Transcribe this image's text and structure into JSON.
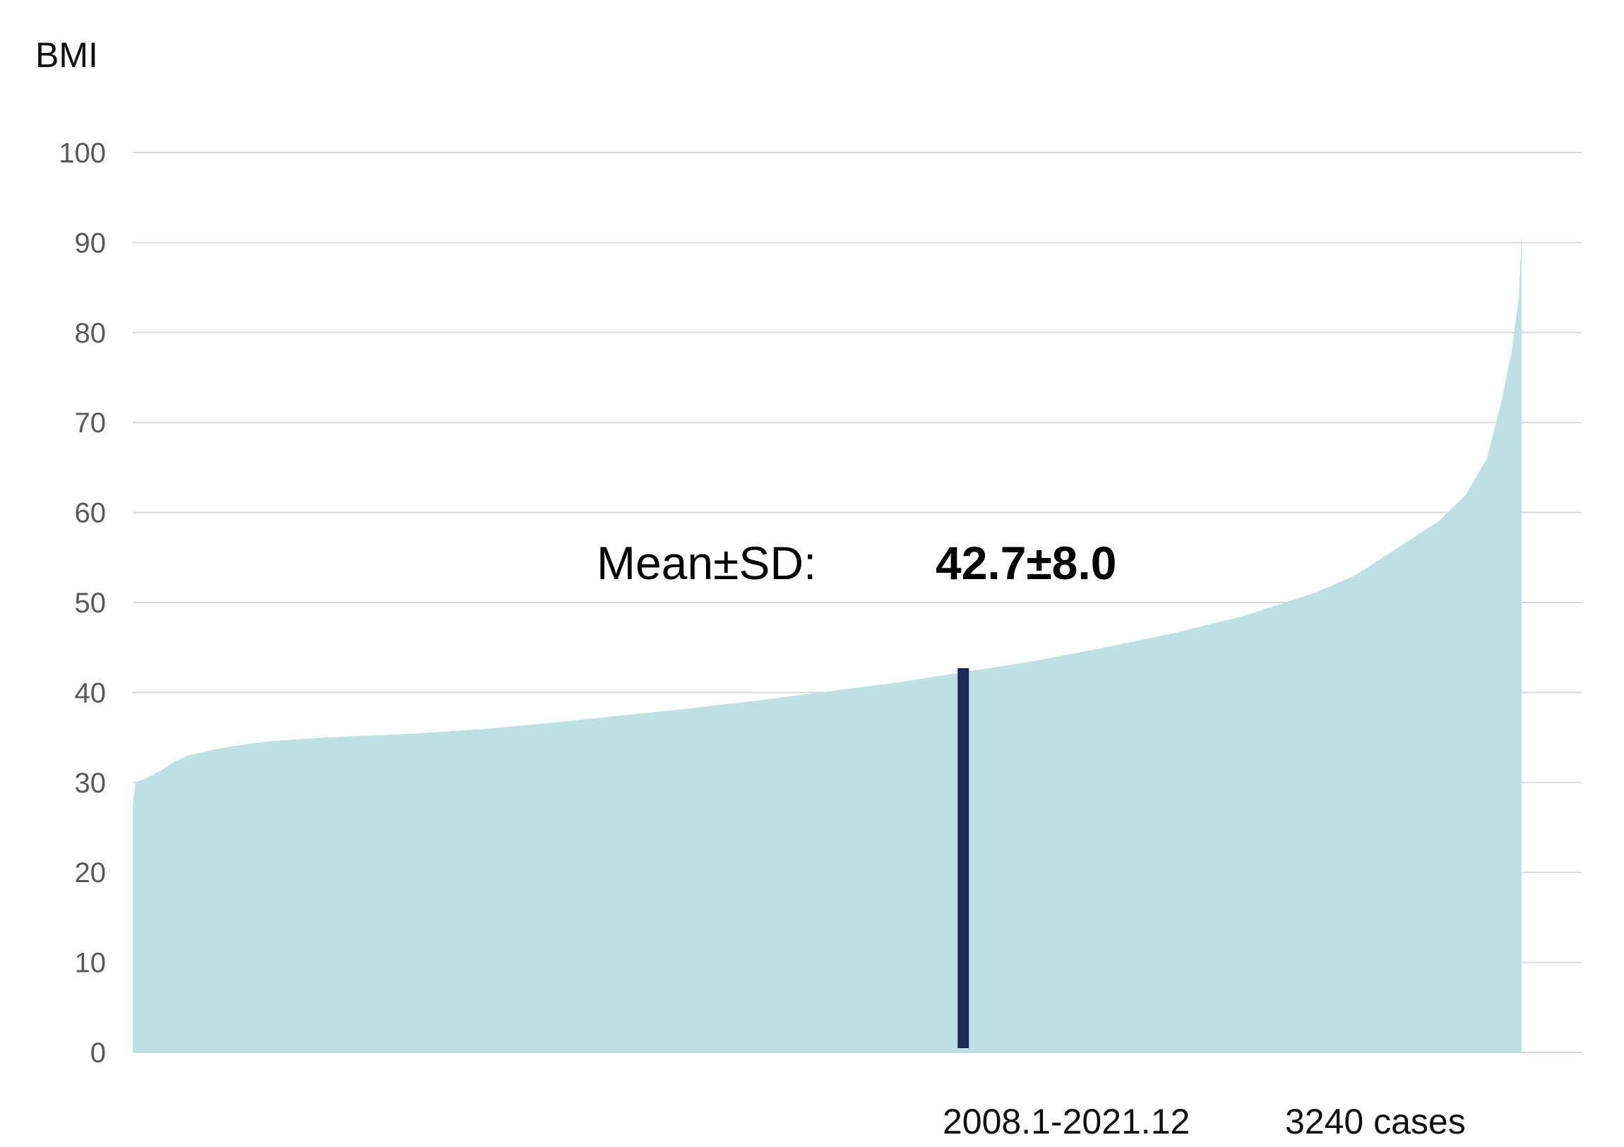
{
  "chart_data": {
    "type": "area",
    "ylabel": "BMI",
    "ylim": [
      0,
      100
    ],
    "yticks": [
      "0",
      "10",
      "20",
      "30",
      "40",
      "50",
      "60",
      "70",
      "80",
      "90",
      "100"
    ],
    "x": {
      "count": 3240,
      "description": "cases sorted ascending by BMI"
    },
    "series": [
      {
        "values_at_rank_fraction": [
          [
            0.0,
            27.5
          ],
          [
            0.002,
            30.0
          ],
          [
            0.01,
            30.5
          ],
          [
            0.02,
            31.3
          ],
          [
            0.03,
            32.3
          ],
          [
            0.04,
            33.0
          ],
          [
            0.06,
            33.7
          ],
          [
            0.08,
            34.2
          ],
          [
            0.1,
            34.6
          ],
          [
            0.14,
            35.0
          ],
          [
            0.2,
            35.4
          ],
          [
            0.25,
            35.9
          ],
          [
            0.3,
            36.6
          ],
          [
            0.35,
            37.4
          ],
          [
            0.4,
            38.2
          ],
          [
            0.45,
            39.1
          ],
          [
            0.5,
            40.1
          ],
          [
            0.55,
            41.1
          ],
          [
            0.6,
            42.3
          ],
          [
            0.65,
            43.5
          ],
          [
            0.7,
            45.0
          ],
          [
            0.75,
            46.6
          ],
          [
            0.8,
            48.5
          ],
          [
            0.85,
            51.0
          ],
          [
            0.88,
            53.0
          ],
          [
            0.91,
            56.0
          ],
          [
            0.94,
            59.0
          ],
          [
            0.96,
            62.0
          ],
          [
            0.975,
            66.0
          ],
          [
            0.985,
            72.0
          ],
          [
            0.993,
            78.0
          ],
          [
            0.998,
            84.0
          ],
          [
            1.0,
            91.0
          ]
        ]
      }
    ],
    "marker": {
      "value": 42.7,
      "at_rank_fraction": 0.598,
      "color": "#1b2a57"
    },
    "fill_color": "#bce0e4",
    "grid": true,
    "annotation": {
      "label": "Mean±SD:",
      "value": "42.7±8.0"
    },
    "footer": {
      "period": "2008.1-2021.12",
      "cases": "3240 cases"
    }
  }
}
